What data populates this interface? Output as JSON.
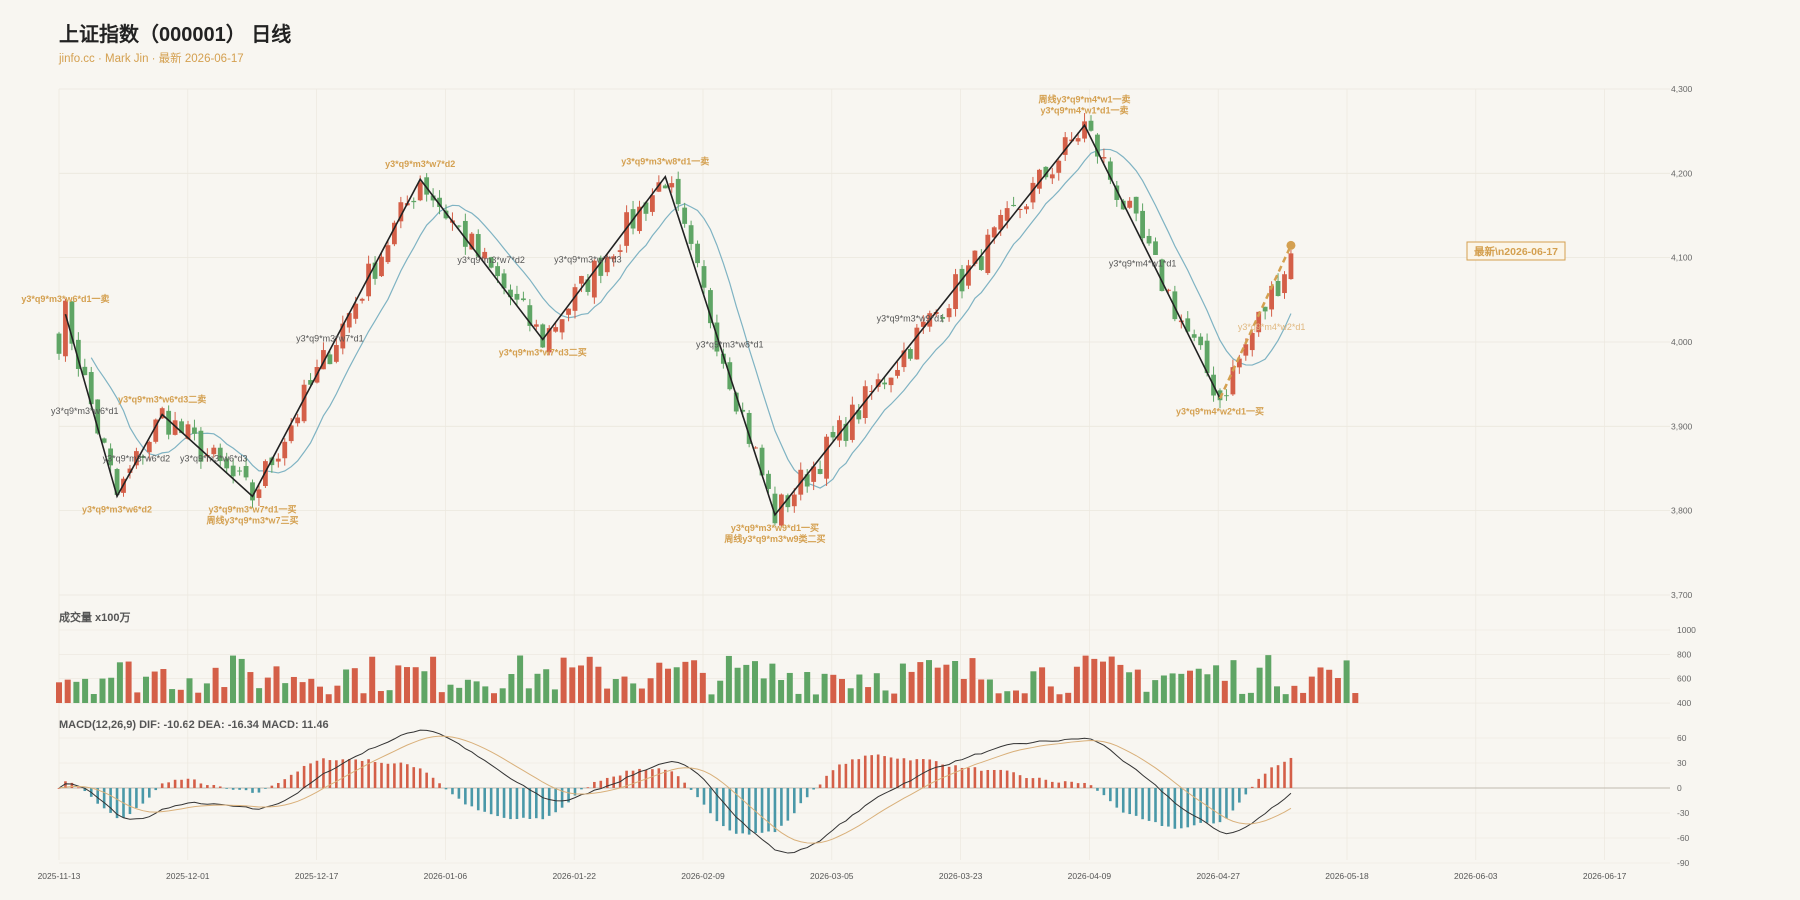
{
  "header": {
    "title": "上证指数（000001） 日线",
    "subtitle": "jinfo.cc · Mark Jin · 最新 2026-06-17"
  },
  "colors": {
    "background": "#f8f6f1",
    "up": "#d45f48",
    "down": "#5fa565",
    "ma_line": "#7fb3c3",
    "zigzag": "#222222",
    "annotation_gold": "#d4a050",
    "annotation_gray": "#555555",
    "dea_line": "#d9b07a",
    "hist_neg": "#4a98a8"
  },
  "chart_data": {
    "type": "candlestick",
    "price_axis": {
      "range": [
        3700,
        4300
      ],
      "ticks": [
        "4,300",
        "4,200",
        "4,100",
        "4,000",
        "3,900",
        "3,800",
        "3,700"
      ]
    },
    "date_ticks": [
      "2025-11-13",
      "2025-12-01",
      "2025-12-17",
      "2026-01-06",
      "2026-01-22",
      "2026-02-09",
      "2026-03-05",
      "2026-03-23",
      "2026-04-09",
      "2026-04-27",
      "2026-05-18",
      "2026-06-03",
      "2026-06-17"
    ],
    "zigzag": [
      {
        "i": 1,
        "price": 4033
      },
      {
        "i": 9,
        "price": 3817
      },
      {
        "i": 16,
        "price": 3914
      },
      {
        "i": 30,
        "price": 3817
      },
      {
        "i": 56,
        "price": 4193
      },
      {
        "i": 75,
        "price": 4003
      },
      {
        "i": 94,
        "price": 4196
      },
      {
        "i": 111,
        "price": 3795
      },
      {
        "i": 159,
        "price": 4257
      },
      {
        "i": 180,
        "price": 3933
      }
    ],
    "annotations": [
      {
        "i": 1,
        "price": 4033,
        "text": [
          "y3*q9*m3*w6*d1一卖"
        ],
        "color": "gold",
        "pos": "above"
      },
      {
        "i": 9,
        "price": 3817,
        "text": [
          "y3*q9*m3*w6*d2"
        ],
        "color": "gold",
        "pos": "below"
      },
      {
        "i": 16,
        "price": 3914,
        "text": [
          "y3*q9*m3*w6*d3二卖"
        ],
        "color": "gold",
        "pos": "above"
      },
      {
        "i": 30,
        "price": 3817,
        "text": [
          "y3*q9*m3*w7*d1一买",
          "周线y3*q9*m3*w7三买"
        ],
        "color": "gold",
        "pos": "below"
      },
      {
        "i": 56,
        "price": 4193,
        "text": [
          "y3*q9*m3*w7*d2"
        ],
        "color": "gold",
        "pos": "above"
      },
      {
        "i": 75,
        "price": 4003,
        "text": [
          "y3*q9*m3*w7*d3二买"
        ],
        "color": "gold",
        "pos": "below"
      },
      {
        "i": 94,
        "price": 4196,
        "text": [
          "y3*q9*m3*w8*d1一卖"
        ],
        "color": "gold",
        "pos": "above"
      },
      {
        "i": 111,
        "price": 3795,
        "text": [
          "y3*q9*m3*w9*d1一买",
          "周线y3*q9*m3*w9类二买"
        ],
        "color": "gold",
        "pos": "below"
      },
      {
        "i": 159,
        "price": 4257,
        "text": [
          "周线y3*q9*m4*w1一卖",
          "y3*q9*m4*w1*d1一卖"
        ],
        "color": "gold",
        "pos": "above"
      },
      {
        "i": 180,
        "price": 3933,
        "text": [
          "y3*q9*m4*w2*d1一买"
        ],
        "color": "gold",
        "pos": "below"
      },
      {
        "i": 4,
        "price": 3918,
        "text": [
          "y3*q9*m3*w6*d1"
        ],
        "color": "gray",
        "pos": "mid"
      },
      {
        "i": 12,
        "price": 3862,
        "text": [
          "y3*q9*m3*w6*d2"
        ],
        "color": "gray",
        "pos": "mid"
      },
      {
        "i": 24,
        "price": 3862,
        "text": [
          "y3*q9*m3*w6*d3"
        ],
        "color": "gray",
        "pos": "mid"
      },
      {
        "i": 42,
        "price": 4004,
        "text": [
          "y3*q9*m3*w7*d1"
        ],
        "color": "gray",
        "pos": "mid"
      },
      {
        "i": 67,
        "price": 4097,
        "text": [
          "y3*q9*m3*w7*d2"
        ],
        "color": "gray",
        "pos": "mid"
      },
      {
        "i": 82,
        "price": 4098,
        "text": [
          "y3*q9*m3*w7*d3"
        ],
        "color": "gray",
        "pos": "mid"
      },
      {
        "i": 104,
        "price": 3997,
        "text": [
          "y3*q9*m3*w8*d1"
        ],
        "color": "gray",
        "pos": "mid"
      },
      {
        "i": 132,
        "price": 4028,
        "text": [
          "y3*q9*m3*w9*d1"
        ],
        "color": "gray",
        "pos": "mid"
      },
      {
        "i": 168,
        "price": 4093,
        "text": [
          "y3*q9*m4*w1*d1"
        ],
        "color": "gray",
        "pos": "mid"
      },
      {
        "i": 188,
        "price": 4018,
        "text": [
          "y3*q9*m4*w2*d1"
        ],
        "color": "gold_light",
        "pos": "mid"
      }
    ],
    "latest_label": "最新\\n2026-06-17",
    "volume": {
      "title": "成交量 x100万",
      "range": [
        400,
        1000
      ],
      "ticks": [
        "1000",
        "800",
        "600",
        "400"
      ]
    },
    "macd": {
      "title": "MACD(12,26,9) DIF: -10.62 DEA: -16.34 MACD: 11.46",
      "range": [
        -90,
        60
      ],
      "ticks": [
        "60",
        "30",
        "0",
        "-30",
        "-60",
        "-90"
      ]
    }
  }
}
